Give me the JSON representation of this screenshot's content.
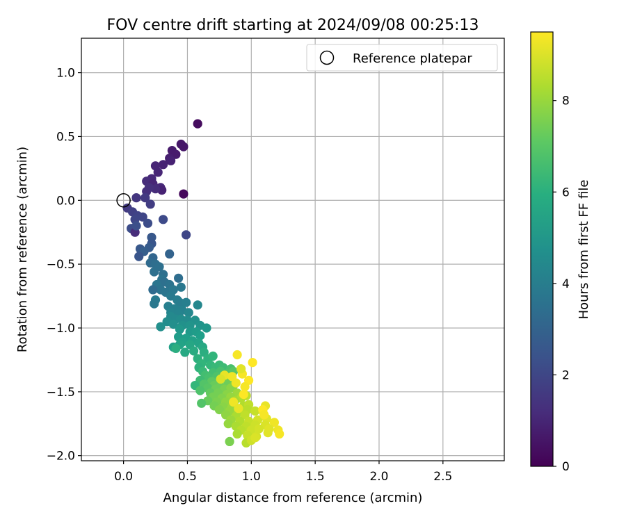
{
  "chart_data": {
    "type": "scatter",
    "title": "FOV centre drift starting at 2024/09/08 00:25:13",
    "xlabel": "Angular distance from reference (arcmin)",
    "ylabel": "Rotation from reference (arcmin)",
    "xlim": [
      -0.33,
      2.98
    ],
    "ylim": [
      -2.04,
      1.27
    ],
    "x_ticks": [
      0.0,
      0.5,
      1.0,
      1.5,
      2.0,
      2.5
    ],
    "x_tick_labels": [
      "0.0",
      "0.5",
      "1.0",
      "1.5",
      "2.0",
      "2.5"
    ],
    "y_ticks": [
      1.0,
      0.5,
      0.0,
      -0.5,
      -1.0,
      -1.5,
      -2.0
    ],
    "y_tick_labels": [
      "1.0",
      "0.5",
      "0.0",
      "−0.5",
      "−1.0",
      "−1.5",
      "−2.0"
    ],
    "grid": true,
    "legend": {
      "position": "top-right",
      "label": "Reference platepar"
    },
    "reference_point": {
      "x": 0.0,
      "y": 0.0
    },
    "colorbar": {
      "label": "Hours from first FF file",
      "colormap": "viridis",
      "range": [
        0,
        9.5
      ],
      "ticks": [
        0,
        2,
        4,
        6,
        8
      ],
      "tick_labels": [
        "0",
        "2",
        "4",
        "6",
        "8"
      ]
    },
    "points": [
      [
        0.58,
        0.6,
        0.3
      ],
      [
        0.45,
        0.44,
        0.6
      ],
      [
        0.47,
        0.42,
        0.6
      ],
      [
        0.38,
        0.39,
        0.7
      ],
      [
        0.41,
        0.36,
        0.7
      ],
      [
        0.36,
        0.33,
        0.8
      ],
      [
        0.37,
        0.31,
        0.9
      ],
      [
        0.31,
        0.28,
        0.9
      ],
      [
        0.25,
        0.27,
        1.0
      ],
      [
        0.27,
        0.22,
        1.0
      ],
      [
        0.22,
        0.17,
        1.1
      ],
      [
        0.18,
        0.15,
        1.2
      ],
      [
        0.23,
        0.13,
        1.0
      ],
      [
        0.29,
        0.1,
        1.1
      ],
      [
        0.3,
        0.08,
        0.9
      ],
      [
        0.25,
        0.09,
        1.2
      ],
      [
        0.2,
        0.1,
        1.3
      ],
      [
        0.18,
        0.07,
        1.3
      ],
      [
        0.47,
        0.05,
        0.2
      ],
      [
        0.1,
        0.02,
        1.5
      ],
      [
        0.17,
        0.02,
        1.6
      ],
      [
        0.21,
        -0.03,
        1.7
      ],
      [
        0.03,
        -0.06,
        1.6
      ],
      [
        0.07,
        -0.09,
        1.8
      ],
      [
        0.11,
        -0.12,
        1.9
      ],
      [
        0.15,
        -0.13,
        2.0
      ],
      [
        0.09,
        -0.15,
        2.0
      ],
      [
        0.31,
        -0.15,
        2.1
      ],
      [
        0.19,
        -0.18,
        2.2
      ],
      [
        0.06,
        -0.22,
        2.2
      ],
      [
        0.09,
        -0.25,
        1.2
      ],
      [
        0.1,
        -0.2,
        2.3
      ],
      [
        0.49,
        -0.27,
        2.0
      ],
      [
        0.22,
        -0.29,
        2.6
      ],
      [
        0.22,
        -0.34,
        2.5
      ],
      [
        0.2,
        -0.37,
        2.7
      ],
      [
        0.13,
        -0.38,
        2.6
      ],
      [
        0.16,
        -0.4,
        2.8
      ],
      [
        0.12,
        -0.44,
        2.5
      ],
      [
        0.36,
        -0.42,
        3.0
      ],
      [
        0.23,
        -0.45,
        3.1
      ],
      [
        0.21,
        -0.49,
        3.3
      ],
      [
        0.25,
        -0.5,
        3.4
      ],
      [
        0.28,
        -0.52,
        3.5
      ],
      [
        0.24,
        -0.56,
        3.5
      ],
      [
        0.31,
        -0.58,
        3.5
      ],
      [
        0.3,
        -0.62,
        3.6
      ],
      [
        0.32,
        -0.64,
        3.5
      ],
      [
        0.43,
        -0.61,
        3.4
      ],
      [
        0.36,
        -0.66,
        3.6
      ],
      [
        0.26,
        -0.66,
        3.7
      ],
      [
        0.29,
        -0.7,
        3.6
      ],
      [
        0.33,
        -0.72,
        3.7
      ],
      [
        0.39,
        -0.7,
        3.8
      ],
      [
        0.45,
        -0.68,
        3.8
      ],
      [
        0.23,
        -0.7,
        3.3
      ],
      [
        0.37,
        -0.75,
        3.9
      ],
      [
        0.42,
        -0.78,
        4.0
      ],
      [
        0.25,
        -0.78,
        3.9
      ],
      [
        0.24,
        -0.81,
        3.8
      ],
      [
        0.44,
        -0.8,
        4.0
      ],
      [
        0.49,
        -0.8,
        4.1
      ],
      [
        0.58,
        -0.82,
        4.4
      ],
      [
        0.35,
        -0.83,
        4.1
      ],
      [
        0.4,
        -0.85,
        4.2
      ],
      [
        0.46,
        -0.86,
        4.2
      ],
      [
        0.37,
        -0.88,
        4.3
      ],
      [
        0.43,
        -0.89,
        4.3
      ],
      [
        0.51,
        -0.88,
        4.4
      ],
      [
        0.37,
        -0.91,
        4.5
      ],
      [
        0.41,
        -0.93,
        4.5
      ],
      [
        0.45,
        -0.93,
        4.6
      ],
      [
        0.5,
        -0.94,
        4.6
      ],
      [
        0.56,
        -0.94,
        4.8
      ],
      [
        0.34,
        -0.95,
        4.6
      ],
      [
        0.39,
        -0.97,
        4.7
      ],
      [
        0.46,
        -0.98,
        4.8
      ],
      [
        0.52,
        -0.98,
        4.9
      ],
      [
        0.6,
        -0.98,
        4.9
      ],
      [
        0.65,
        -1.0,
        5.0
      ],
      [
        0.29,
        -0.99,
        4.7
      ],
      [
        0.44,
        -1.01,
        5.0
      ],
      [
        0.52,
        -1.03,
        5.1
      ],
      [
        0.57,
        -1.03,
        5.2
      ],
      [
        0.6,
        -1.06,
        5.3
      ],
      [
        0.43,
        -1.07,
        5.2
      ],
      [
        0.49,
        -1.08,
        5.3
      ],
      [
        0.54,
        -1.1,
        5.4
      ],
      [
        0.59,
        -1.12,
        5.5
      ],
      [
        0.46,
        -1.11,
        5.4
      ],
      [
        0.52,
        -1.13,
        5.6
      ],
      [
        0.62,
        -1.15,
        5.7
      ],
      [
        0.39,
        -1.15,
        5.4
      ],
      [
        0.44,
        -1.13,
        5.5
      ],
      [
        0.48,
        -1.19,
        5.7
      ],
      [
        0.55,
        -1.18,
        5.8
      ],
      [
        0.63,
        -1.19,
        5.9
      ],
      [
        0.58,
        -1.24,
        6.0
      ],
      [
        0.66,
        -1.24,
        6.1
      ],
      [
        0.7,
        -1.22,
        6.2
      ],
      [
        0.41,
        -1.16,
        5.9
      ],
      [
        0.61,
        -1.28,
        6.2
      ],
      [
        0.68,
        -1.29,
        6.3
      ],
      [
        0.59,
        -1.31,
        6.1
      ],
      [
        0.72,
        -1.31,
        6.4
      ],
      [
        0.75,
        -1.29,
        6.4
      ],
      [
        0.78,
        -1.31,
        6.5
      ],
      [
        0.84,
        -1.32,
        6.7
      ],
      [
        0.62,
        -1.34,
        6.4
      ],
      [
        0.7,
        -1.35,
        6.6
      ],
      [
        0.76,
        -1.34,
        6.7
      ],
      [
        0.81,
        -1.36,
        6.9
      ],
      [
        0.86,
        -1.34,
        7.0
      ],
      [
        0.64,
        -1.37,
        6.6
      ],
      [
        0.67,
        -1.39,
        6.7
      ],
      [
        0.73,
        -1.38,
        6.8
      ],
      [
        0.79,
        -1.39,
        7.0
      ],
      [
        0.6,
        -1.41,
        6.5
      ],
      [
        0.69,
        -1.42,
        7.1
      ],
      [
        0.75,
        -1.42,
        7.2
      ],
      [
        0.82,
        -1.43,
        7.4
      ],
      [
        0.56,
        -1.45,
        6.3
      ],
      [
        0.63,
        -1.44,
        6.9
      ],
      [
        0.71,
        -1.45,
        7.3
      ],
      [
        0.76,
        -1.46,
        7.4
      ],
      [
        0.86,
        -1.45,
        7.6
      ],
      [
        0.66,
        -1.47,
        7.0
      ],
      [
        0.72,
        -1.48,
        7.4
      ],
      [
        0.79,
        -1.48,
        7.6
      ],
      [
        0.84,
        -1.47,
        7.8
      ],
      [
        0.6,
        -1.49,
        6.8
      ],
      [
        0.68,
        -1.51,
        7.2
      ],
      [
        0.74,
        -1.51,
        7.5
      ],
      [
        0.81,
        -1.52,
        7.8
      ],
      [
        0.89,
        -1.51,
        8.1
      ],
      [
        0.7,
        -1.54,
        7.5
      ],
      [
        0.77,
        -1.55,
        7.7
      ],
      [
        0.84,
        -1.54,
        8.0
      ],
      [
        0.92,
        -1.55,
        8.4
      ],
      [
        0.96,
        -1.53,
        8.6
      ],
      [
        0.66,
        -1.57,
        7.3
      ],
      [
        0.73,
        -1.58,
        7.6
      ],
      [
        0.8,
        -1.58,
        7.9
      ],
      [
        0.87,
        -1.57,
        8.2
      ],
      [
        0.61,
        -1.59,
        6.9
      ],
      [
        0.71,
        -1.61,
        7.5
      ],
      [
        0.78,
        -1.62,
        7.8
      ],
      [
        0.85,
        -1.62,
        8.1
      ],
      [
        0.94,
        -1.61,
        8.4
      ],
      [
        0.98,
        -1.6,
        8.6
      ],
      [
        0.75,
        -1.64,
        7.7
      ],
      [
        0.83,
        -1.65,
        8.0
      ],
      [
        0.9,
        -1.65,
        8.3
      ],
      [
        0.97,
        -1.64,
        8.5
      ],
      [
        1.03,
        -1.65,
        8.7
      ],
      [
        0.8,
        -1.68,
        7.9
      ],
      [
        0.88,
        -1.69,
        8.3
      ],
      [
        0.95,
        -1.68,
        8.6
      ],
      [
        1.09,
        -1.65,
        9.0
      ],
      [
        0.84,
        -1.72,
        8.1
      ],
      [
        0.91,
        -1.73,
        8.4
      ],
      [
        0.98,
        -1.73,
        8.7
      ],
      [
        1.05,
        -1.72,
        8.9
      ],
      [
        1.12,
        -1.71,
        9.1
      ],
      [
        0.82,
        -1.75,
        8.0
      ],
      [
        0.88,
        -1.77,
        8.3
      ],
      [
        0.96,
        -1.77,
        8.6
      ],
      [
        1.03,
        -1.76,
        8.8
      ],
      [
        1.11,
        -1.76,
        9.0
      ],
      [
        1.18,
        -1.74,
        9.3
      ],
      [
        0.92,
        -1.8,
        8.5
      ],
      [
        1.0,
        -1.8,
        8.8
      ],
      [
        1.06,
        -1.79,
        8.9
      ],
      [
        1.14,
        -1.79,
        9.1
      ],
      [
        1.21,
        -1.8,
        9.3
      ],
      [
        0.89,
        -1.83,
        8.3
      ],
      [
        0.97,
        -1.84,
        8.7
      ],
      [
        1.04,
        -1.85,
        8.9
      ],
      [
        1.13,
        -1.82,
        9.1
      ],
      [
        1.22,
        -1.83,
        9.4
      ],
      [
        0.83,
        -1.89,
        7.6
      ],
      [
        0.96,
        -1.9,
        8.5
      ],
      [
        1.0,
        -1.88,
        8.8
      ],
      [
        1.03,
        -1.86,
        9.0
      ],
      [
        1.11,
        -1.61,
        9.2
      ],
      [
        0.89,
        -1.21,
        9.4
      ],
      [
        1.01,
        -1.27,
        9.5
      ],
      [
        0.93,
        -1.36,
        9.4
      ],
      [
        0.98,
        -1.41,
        9.5
      ],
      [
        0.88,
        -1.43,
        9.3
      ],
      [
        0.95,
        -1.46,
        9.4
      ],
      [
        1.09,
        -1.64,
        9.5
      ],
      [
        0.94,
        -1.52,
        9.5
      ],
      [
        0.79,
        -1.37,
        9.2
      ],
      [
        0.76,
        -1.4,
        9.0
      ],
      [
        0.86,
        -1.58,
        9.3
      ],
      [
        0.9,
        -1.63,
        9.2
      ],
      [
        1.1,
        -1.68,
        9.4
      ],
      [
        0.92,
        -1.32,
        9.1
      ],
      [
        0.85,
        -1.38,
        9.3
      ]
    ]
  }
}
